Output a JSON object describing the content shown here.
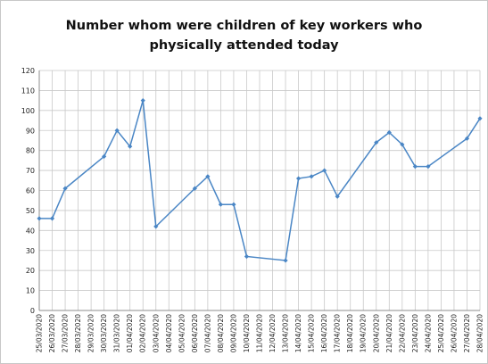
{
  "chart_data": {
    "type": "line",
    "title_line1": "Number whom were children of key workers who",
    "title_line2": "physically attended today",
    "xlabel": "",
    "ylabel": "",
    "ylim": [
      0,
      120
    ],
    "ytick_step": 10,
    "grid": true,
    "legend": "none",
    "series_color": "#4a86c5",
    "x": [
      "25/03/2020",
      "26/03/2020",
      "27/03/2020",
      "28/03/2020",
      "29/03/2020",
      "30/03/2020",
      "31/03/2020",
      "01/04/2020",
      "02/04/2020",
      "03/04/2020",
      "04/04/2020",
      "05/04/2020",
      "06/04/2020",
      "07/04/2020",
      "08/04/2020",
      "09/04/2020",
      "10/04/2020",
      "11/04/2020",
      "12/04/2020",
      "13/04/2020",
      "14/04/2020",
      "15/04/2020",
      "16/04/2020",
      "17/04/2020",
      "18/04/2020",
      "19/04/2020",
      "20/04/2020",
      "21/04/2020",
      "22/04/2020",
      "23/04/2020",
      "24/04/2020",
      "25/04/2020",
      "26/04/2020",
      "27/04/2020",
      "28/04/2020"
    ],
    "points": [
      {
        "x": "25/03/2020",
        "y": 46
      },
      {
        "x": "26/03/2020",
        "y": 46
      },
      {
        "x": "27/03/2020",
        "y": 61
      },
      {
        "x": "30/03/2020",
        "y": 77
      },
      {
        "x": "31/03/2020",
        "y": 90
      },
      {
        "x": "01/04/2020",
        "y": 82
      },
      {
        "x": "02/04/2020",
        "y": 105
      },
      {
        "x": "03/04/2020",
        "y": 42
      },
      {
        "x": "06/04/2020",
        "y": 61
      },
      {
        "x": "07/04/2020",
        "y": 67
      },
      {
        "x": "08/04/2020",
        "y": 53
      },
      {
        "x": "09/04/2020",
        "y": 53
      },
      {
        "x": "10/04/2020",
        "y": 27
      },
      {
        "x": "13/04/2020",
        "y": 25
      },
      {
        "x": "14/04/2020",
        "y": 66
      },
      {
        "x": "15/04/2020",
        "y": 67
      },
      {
        "x": "16/04/2020",
        "y": 70
      },
      {
        "x": "17/04/2020",
        "y": 57
      },
      {
        "x": "20/04/2020",
        "y": 84
      },
      {
        "x": "21/04/2020",
        "y": 89
      },
      {
        "x": "22/04/2020",
        "y": 83
      },
      {
        "x": "23/04/2020",
        "y": 72
      },
      {
        "x": "24/04/2020",
        "y": 72
      },
      {
        "x": "27/04/2020",
        "y": 86
      },
      {
        "x": "28/04/2020",
        "y": 96
      }
    ]
  }
}
